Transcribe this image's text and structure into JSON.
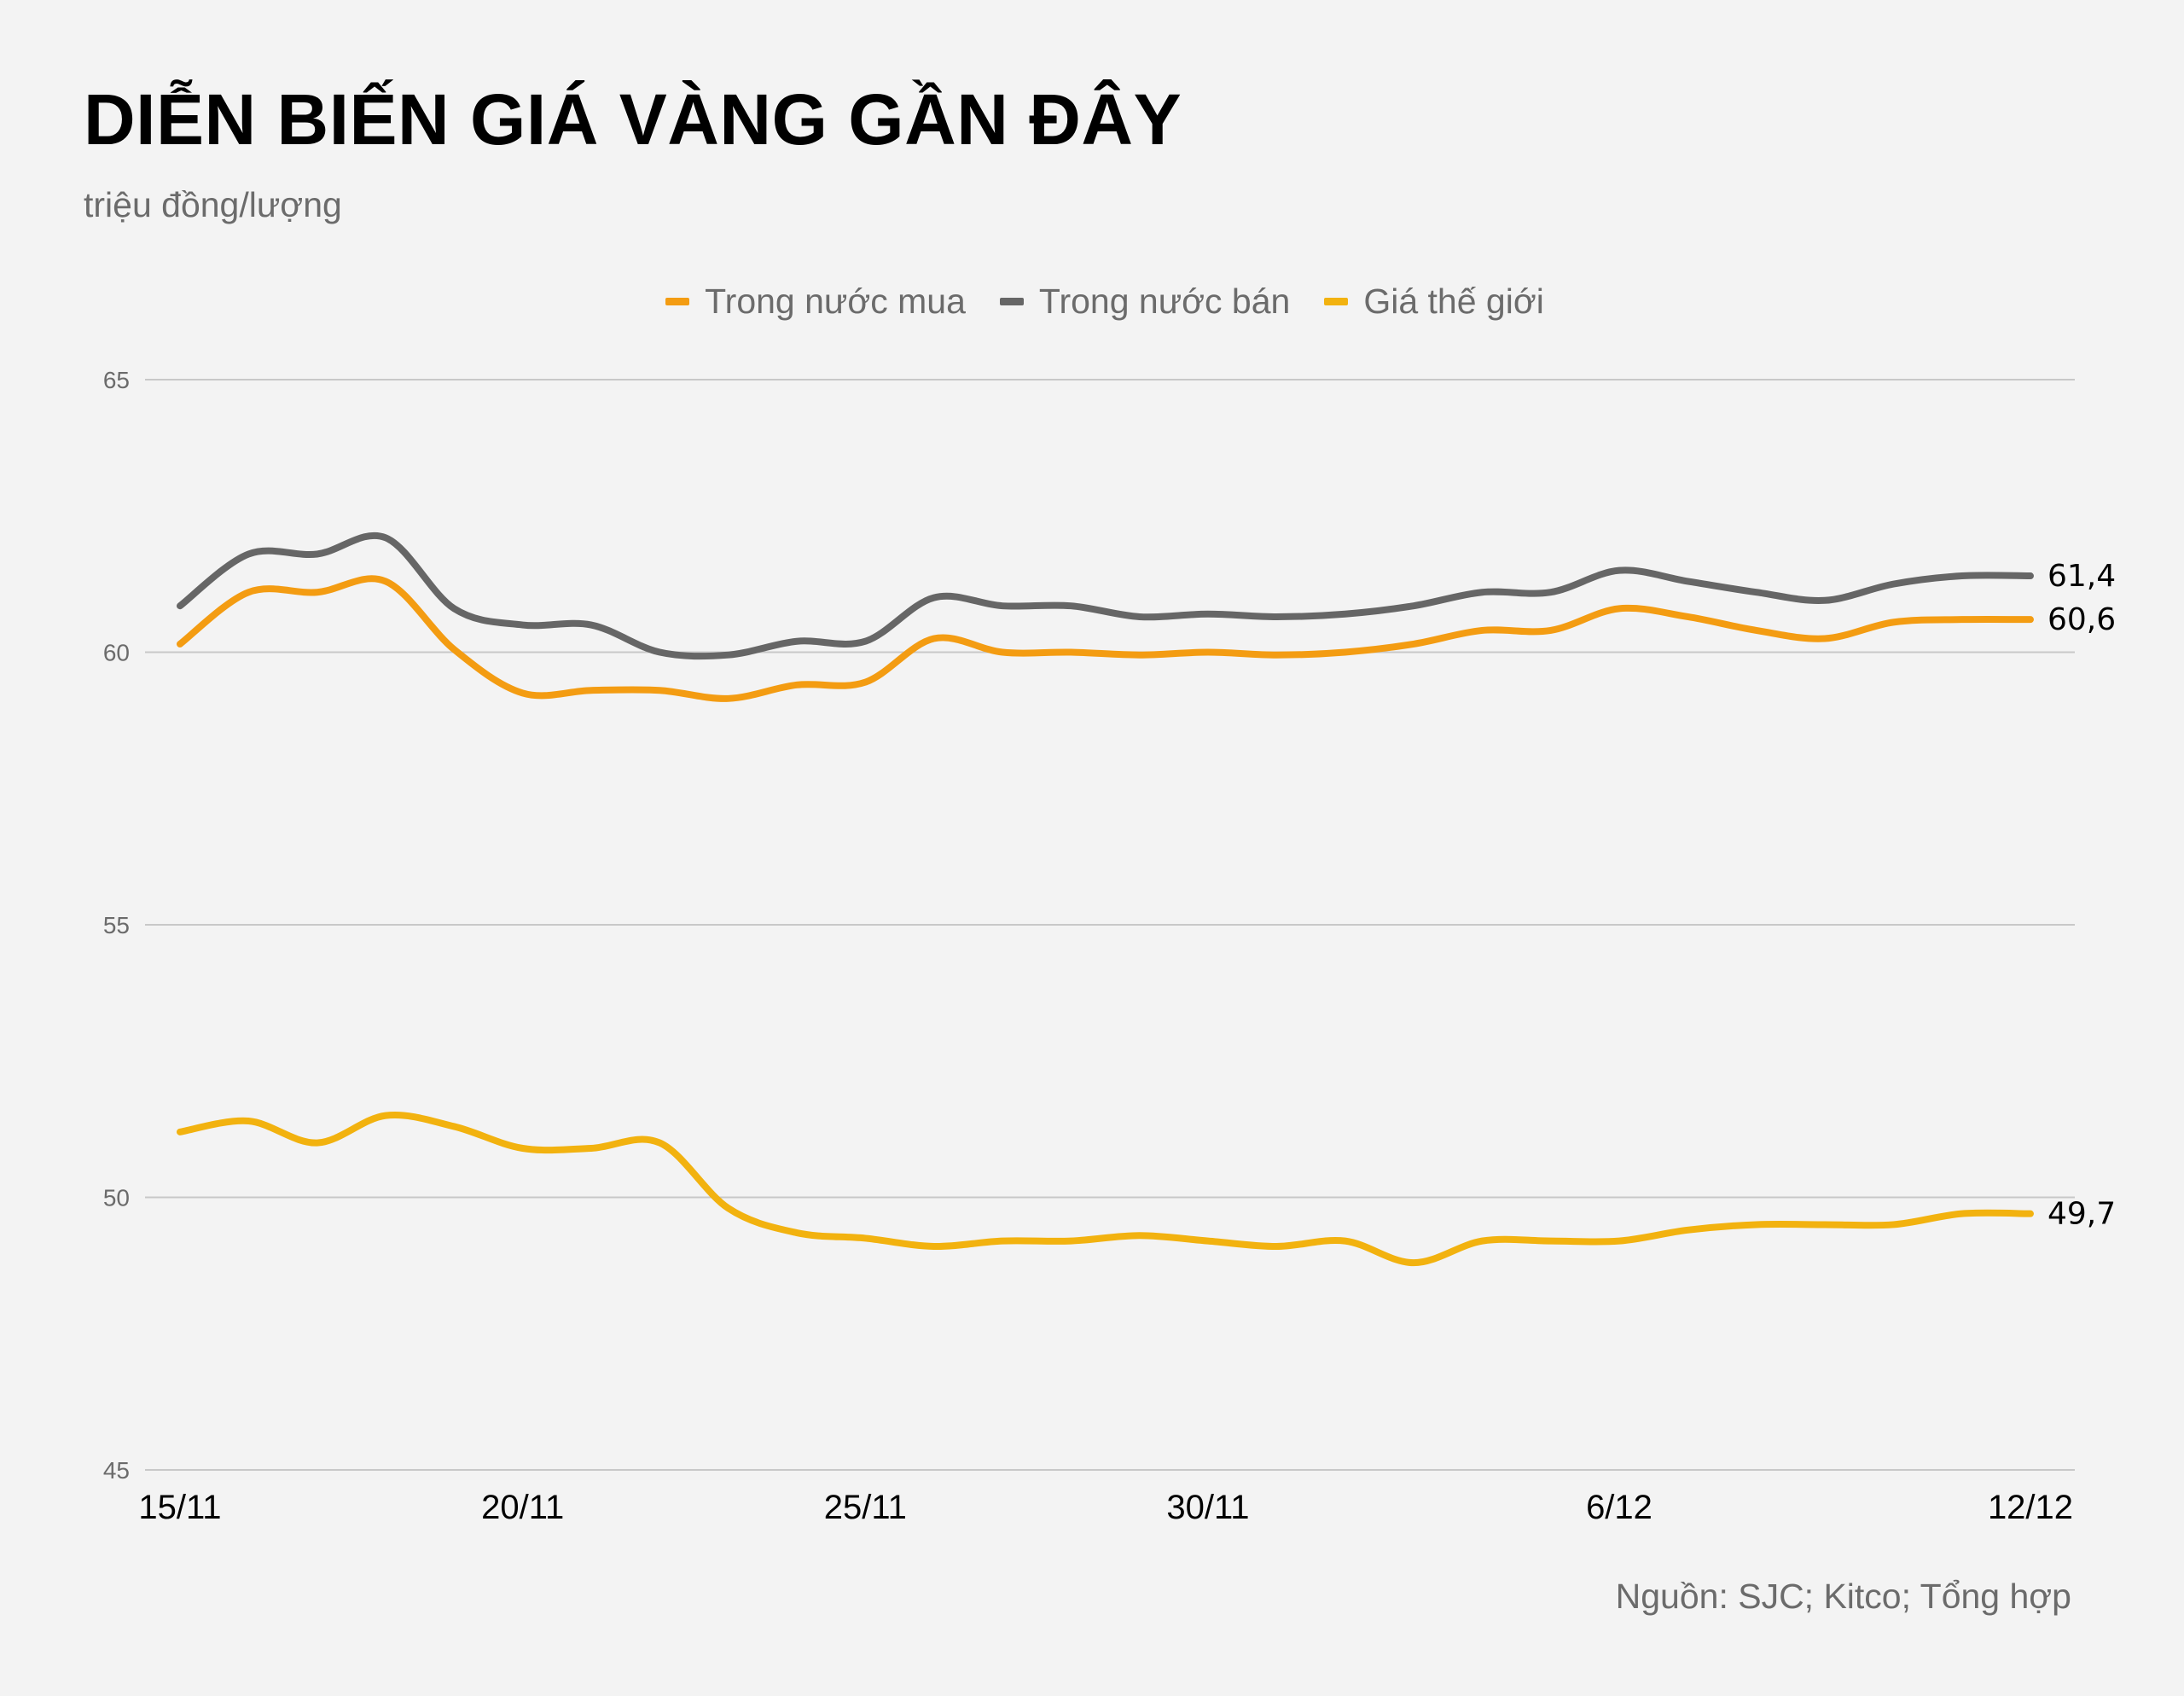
{
  "header": {
    "title": "DIỄN BIẾN GIÁ VÀNG GẦN ĐÂY",
    "subtitle": "triệu đồng/lượng"
  },
  "source": "Nguồn: SJC; Kitco; Tổng hợp",
  "colors": {
    "buy": "#f39c12",
    "sell": "#666666",
    "world": "#f2b20f",
    "grid": "#c8c8c8"
  },
  "chart_data": {
    "type": "line",
    "title": "DIỄN BIẾN GIÁ VÀNG GẦN ĐÂY",
    "ylabel": "triệu đồng/lượng",
    "xlabel": "",
    "ylim": [
      45,
      65
    ],
    "yticks": [
      45,
      50,
      55,
      60,
      65
    ],
    "x_tick_labels": [
      {
        "index": 0,
        "label": "15/11"
      },
      {
        "index": 5,
        "label": "20/11"
      },
      {
        "index": 10,
        "label": "25/11"
      },
      {
        "index": 15,
        "label": "30/11"
      },
      {
        "index": 21,
        "label": "6/12"
      },
      {
        "index": 27,
        "label": "12/12"
      }
    ],
    "legend_position": "top-center",
    "grid": true,
    "series": [
      {
        "name": "Trong nước mua",
        "color_key": "buy",
        "end_label": "60,6",
        "values": [
          60.15,
          61.1,
          61.1,
          61.3,
          60.05,
          59.25,
          59.3,
          59.3,
          59.15,
          59.4,
          59.45,
          60.25,
          60.0,
          60.0,
          59.95,
          60.0,
          59.95,
          60.0,
          60.15,
          60.4,
          60.4,
          60.8,
          60.65,
          60.4,
          60.25,
          60.55,
          60.6,
          60.6
        ]
      },
      {
        "name": "Trong nước bán",
        "color_key": "sell",
        "end_label": "61,4",
        "values": [
          60.85,
          61.8,
          61.8,
          62.1,
          60.8,
          60.5,
          60.5,
          60.0,
          59.95,
          60.2,
          60.2,
          61.0,
          60.85,
          60.85,
          60.65,
          60.7,
          60.65,
          60.7,
          60.85,
          61.1,
          61.1,
          61.5,
          61.3,
          61.1,
          60.95,
          61.25,
          61.4,
          61.4
        ]
      },
      {
        "name": "Giá thế giới",
        "color_key": "world",
        "end_label": "49,7",
        "values": [
          51.2,
          51.4,
          51.0,
          51.5,
          51.3,
          50.9,
          50.9,
          51.0,
          49.8,
          49.35,
          49.25,
          49.1,
          49.2,
          49.2,
          49.3,
          49.2,
          49.1,
          49.2,
          48.8,
          49.2,
          49.2,
          49.2,
          49.4,
          49.5,
          49.5,
          49.5,
          49.7,
          49.7
        ]
      }
    ]
  }
}
